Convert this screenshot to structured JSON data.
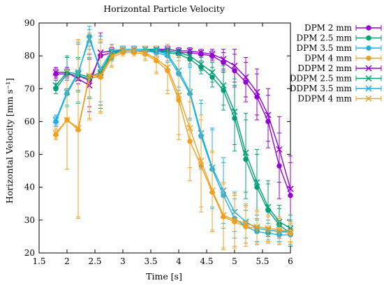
{
  "chart_data": {
    "type": "line",
    "title": "Horizontal Particle Velocity",
    "xlabel": "Time [s]",
    "ylabel": "Horizontal Velocity [mm s⁻¹]",
    "xlim": [
      1.5,
      6
    ],
    "ylim": [
      20,
      90
    ],
    "xticks": [
      1.5,
      2,
      2.5,
      3,
      3.5,
      4,
      4.5,
      5,
      5.5,
      6
    ],
    "yticks": [
      20,
      30,
      40,
      50,
      60,
      70,
      80,
      90
    ],
    "xtick_labels": [
      "1.5",
      "2",
      "2.5",
      "3",
      "3.5",
      "4",
      "4.5",
      "5",
      "5.5",
      "6"
    ],
    "ytick_labels": [
      "20",
      "30",
      "40",
      "50",
      "60",
      "70",
      "80",
      "90"
    ],
    "grid": false,
    "legend_position": "right, outside plot",
    "x": [
      1.8,
      2.0,
      2.2,
      2.4,
      2.6,
      2.8,
      3.0,
      3.2,
      3.4,
      3.6,
      3.8,
      4.0,
      4.2,
      4.4,
      4.6,
      4.8,
      5.0,
      5.2,
      5.4,
      5.6,
      5.8,
      6.0
    ],
    "series": [
      {
        "name": "DPM 2 mm",
        "color": "#9400d3",
        "marker": "circle",
        "values": [
          74.5,
          74.5,
          74,
          72.5,
          80,
          81,
          81.5,
          81.5,
          81.5,
          81.5,
          81.5,
          81,
          81,
          80.5,
          80,
          78,
          75.5,
          72,
          67.5,
          60,
          46.5,
          37.5
        ],
        "err": [
          1.5,
          1.5,
          1.5,
          8,
          6,
          1,
          1,
          1,
          1,
          1,
          1,
          1,
          1,
          1,
          1.5,
          3,
          5,
          6,
          7,
          8,
          10,
          10
        ]
      },
      {
        "name": "DPM 2.5 mm",
        "color": "#009e73",
        "marker": "circle",
        "values": [
          70,
          74.5,
          74,
          73,
          74,
          80.5,
          81.5,
          81.5,
          81.5,
          81.5,
          81,
          80.5,
          79,
          76.5,
          73.5,
          69.5,
          61,
          48.5,
          40,
          33,
          28.5,
          26
        ],
        "err": [
          1.5,
          5,
          5,
          6,
          10,
          2,
          1,
          1,
          1,
          1,
          1,
          1,
          1.5,
          2,
          3,
          6,
          10,
          12,
          10,
          8,
          5,
          4
        ]
      },
      {
        "name": "DPM 3.5 mm",
        "color": "#1ab0e5",
        "marker": "circle",
        "values": [
          60,
          68.5,
          74.5,
          86,
          75,
          81,
          81.5,
          81.5,
          81.5,
          81,
          80,
          74.5,
          68.5,
          55.5,
          45.5,
          37.5,
          30.5,
          28,
          26.5,
          26,
          25.5,
          25.5
        ],
        "err": [
          1.5,
          4,
          9,
          3,
          10,
          2,
          1,
          1,
          1,
          1,
          2,
          5,
          8,
          10,
          12,
          10,
          6,
          5,
          4,
          3,
          3,
          3
        ]
      },
      {
        "name": "DPM 4 mm",
        "color": "#f0a020",
        "marker": "circle",
        "values": [
          56,
          60.5,
          57.5,
          73.5,
          73.5,
          79.5,
          81,
          81,
          80.5,
          78.5,
          75.5,
          66.5,
          54,
          46.5,
          38.5,
          31,
          29.5,
          28,
          27.5,
          27,
          26.5,
          26
        ],
        "err": [
          1.5,
          15,
          27,
          13,
          11,
          3,
          1,
          1,
          2,
          4,
          7,
          12,
          12,
          14,
          12,
          10,
          8,
          6,
          5,
          4,
          4,
          3
        ]
      },
      {
        "name": "DDPM 2 mm",
        "color": "#9400d3",
        "marker": "x",
        "values": [
          75,
          75,
          73,
          71,
          81,
          81.5,
          82,
          82,
          82,
          82,
          82,
          81.5,
          81.5,
          81,
          80.5,
          79,
          77,
          73.5,
          69,
          62,
          51.5,
          39.5
        ],
        "err": [
          1.5,
          1.5,
          1.5,
          8,
          6,
          1,
          1,
          1,
          1,
          1,
          1,
          1,
          1,
          1,
          1.5,
          3,
          5,
          6,
          7,
          8,
          10,
          10
        ]
      },
      {
        "name": "DDPM 2.5 mm",
        "color": "#009e73",
        "marker": "x",
        "values": [
          71,
          75,
          74.5,
          73.5,
          75,
          81,
          82,
          82,
          82,
          82,
          81.5,
          81,
          80,
          77.5,
          75,
          71,
          63,
          50.5,
          41.5,
          34,
          29.5,
          27.5
        ],
        "err": [
          1.5,
          5,
          5,
          6,
          10,
          2,
          1,
          1,
          1,
          1,
          1,
          1,
          1.5,
          2,
          3,
          6,
          10,
          12,
          10,
          8,
          5,
          4
        ]
      },
      {
        "name": "DDPM 3.5 mm",
        "color": "#1ab0e5",
        "marker": "x",
        "values": [
          60.5,
          69,
          75,
          85,
          76,
          81.5,
          82,
          82,
          82,
          81.5,
          80.5,
          75.5,
          69,
          56.5,
          46,
          39,
          32.5,
          29.5,
          27.5,
          27,
          26.5,
          26.5
        ],
        "err": [
          1.5,
          4,
          9,
          3,
          10,
          2,
          1,
          1,
          1,
          1,
          2,
          5,
          8,
          10,
          12,
          10,
          6,
          5,
          4,
          3,
          3,
          3
        ]
      },
      {
        "name": "DDPM 4 mm",
        "color": "#f0a020",
        "marker": "x",
        "values": [
          56.5,
          60.5,
          58,
          74,
          74,
          80,
          81.5,
          81.5,
          81,
          79,
          76.5,
          68,
          58,
          48,
          39,
          31.5,
          30,
          29,
          28,
          27.5,
          27,
          26.5
        ],
        "err": [
          1.5,
          15,
          27,
          13,
          11,
          3,
          1,
          1,
          2,
          4,
          7,
          12,
          12,
          14,
          12,
          10,
          8,
          6,
          5,
          4,
          4,
          3
        ]
      }
    ]
  }
}
